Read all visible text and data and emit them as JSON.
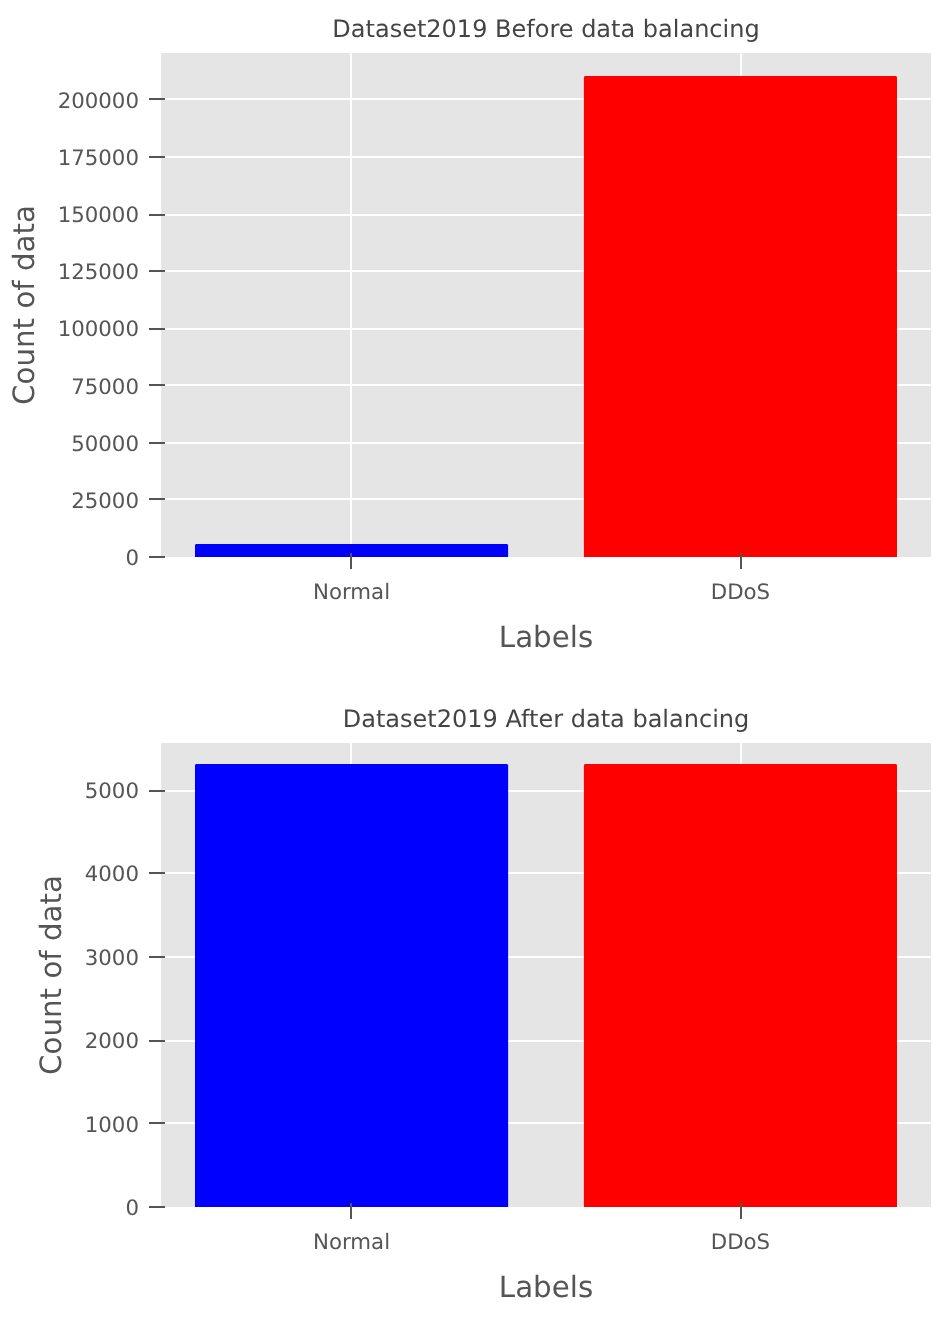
{
  "chart_data": [
    {
      "type": "bar",
      "title": "Dataset2019 Before data balancing",
      "xlabel": "Labels",
      "ylabel": "Count of data",
      "categories": [
        "Normal",
        "DDoS"
      ],
      "values": [
        5300,
        210000
      ],
      "colors": [
        "#0000ff",
        "#ff0000"
      ],
      "ylim": [
        0,
        220500
      ],
      "yticks": [
        0,
        25000,
        50000,
        75000,
        100000,
        125000,
        150000,
        175000,
        200000
      ],
      "grid": true
    },
    {
      "type": "bar",
      "title": "Dataset2019 After data balancing",
      "xlabel": "Labels",
      "ylabel": "Count of data",
      "categories": [
        "Normal",
        "DDoS"
      ],
      "values": [
        5300,
        5300
      ],
      "colors": [
        "#0000ff",
        "#ff0000"
      ],
      "ylim": [
        0,
        5565
      ],
      "yticks": [
        0,
        1000,
        2000,
        3000,
        4000,
        5000
      ],
      "grid": true
    }
  ]
}
